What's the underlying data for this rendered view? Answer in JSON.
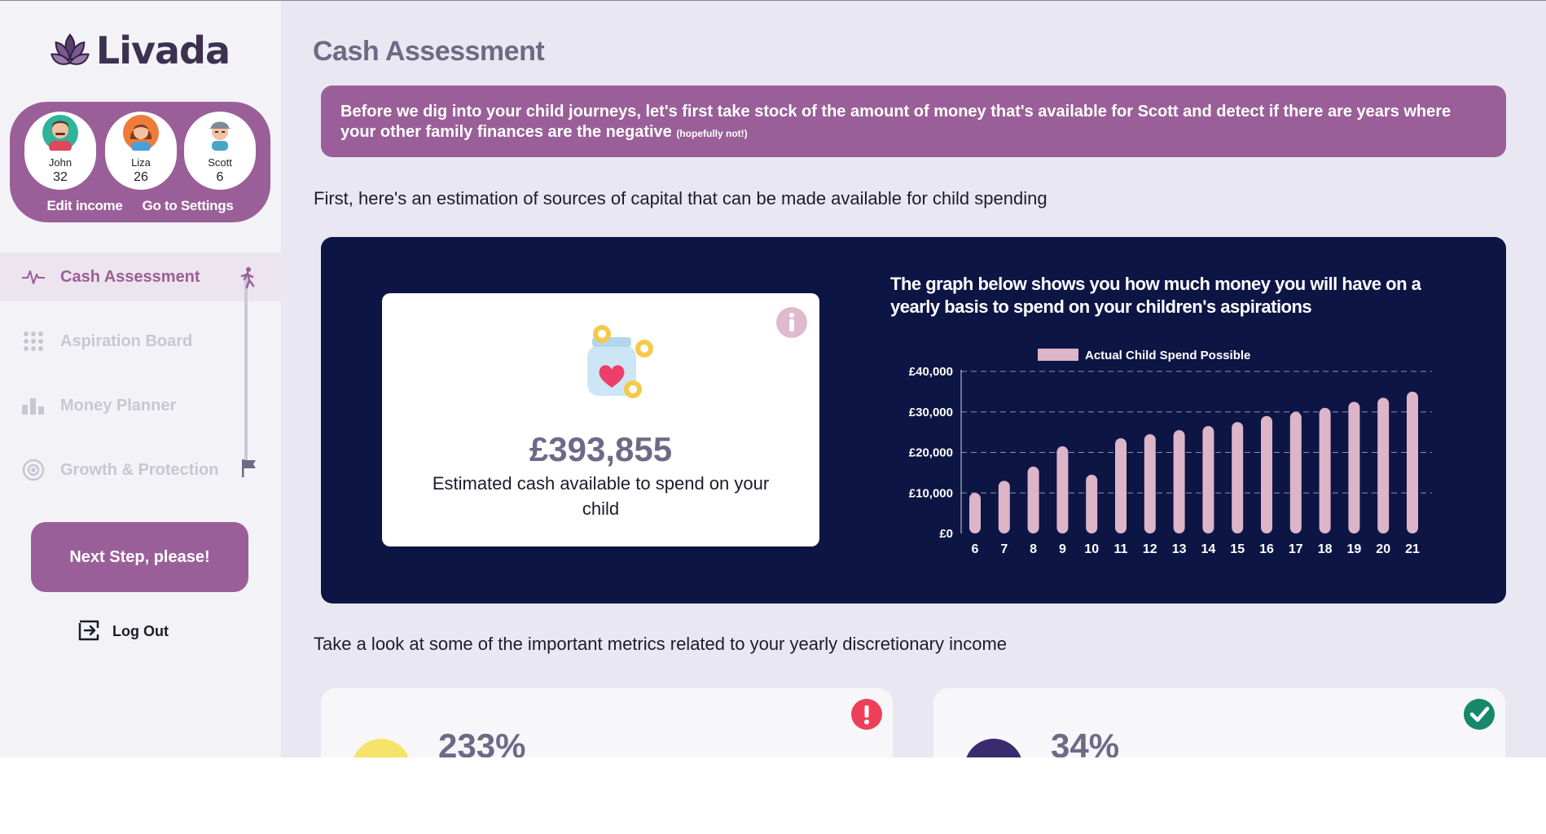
{
  "app": {
    "name": "Livada",
    "colors": {
      "brand": "#9a5f98",
      "navy": "#0d1545",
      "bar": "#dcb5c8",
      "muted_title": "#6e6a86"
    }
  },
  "family": {
    "members": [
      {
        "name": "John",
        "age": "32",
        "icon": "avatar-man-icon"
      },
      {
        "name": "Liza",
        "age": "26",
        "icon": "avatar-woman-icon"
      },
      {
        "name": "Scott",
        "age": "6",
        "icon": "avatar-boy-icon"
      }
    ],
    "edit_income": "Edit income",
    "settings": "Go to Settings"
  },
  "nav": {
    "items": [
      {
        "label": "Cash Assessment",
        "icon": "heartbeat-icon",
        "active": true
      },
      {
        "label": "Aspiration Board",
        "icon": "grid-dots-icon",
        "active": false
      },
      {
        "label": "Money Planner",
        "icon": "bar-chart-icon",
        "active": false
      },
      {
        "label": "Growth & Protection",
        "icon": "target-icon",
        "active": false
      }
    ],
    "next_step": "Next Step, please!",
    "logout": "Log Out"
  },
  "main": {
    "title": "Cash Assessment",
    "banner": {
      "text": "Before we dig into your child journeys, let's first take stock of the amount of money that's available for  Scott and detect if there are years where your other family finances are the negative",
      "small": "(hopefully not!)"
    },
    "intro_capital": "First, here's an estimation of sources of capital that can be made available for child spending",
    "cash_card": {
      "amount": "£393,855",
      "description": "Estimated cash available to spend on your child"
    },
    "chart_heading": "The graph below shows you how much money you will have on a yearly basis to spend on your children's aspirations",
    "intro_metrics": "Take a look at some of the important metrics related to your yearly  discretionary income",
    "metrics": [
      {
        "value": "233%",
        "status": "warning",
        "icon": "exclamation-icon"
      },
      {
        "value": "34%",
        "status": "ok",
        "icon": "check-icon"
      }
    ]
  },
  "chart_data": {
    "type": "bar",
    "categories": [
      "6",
      "7",
      "8",
      "9",
      "10",
      "11",
      "12",
      "13",
      "14",
      "15",
      "16",
      "17",
      "18",
      "19",
      "20",
      "21"
    ],
    "series": [
      {
        "name": "Actual Child Spend Possible",
        "values": [
          10000,
          13000,
          16500,
          21500,
          14500,
          23500,
          24500,
          25500,
          26500,
          27500,
          29000,
          30000,
          31000,
          32500,
          33500,
          35000
        ]
      }
    ],
    "ylim": [
      0,
      40000
    ],
    "yticks": [
      "£0",
      "£10,000",
      "£20,000",
      "£30,000",
      "£40,000"
    ],
    "ytick_values": [
      0,
      10000,
      20000,
      30000,
      40000
    ],
    "grid": true,
    "legend": "top"
  }
}
